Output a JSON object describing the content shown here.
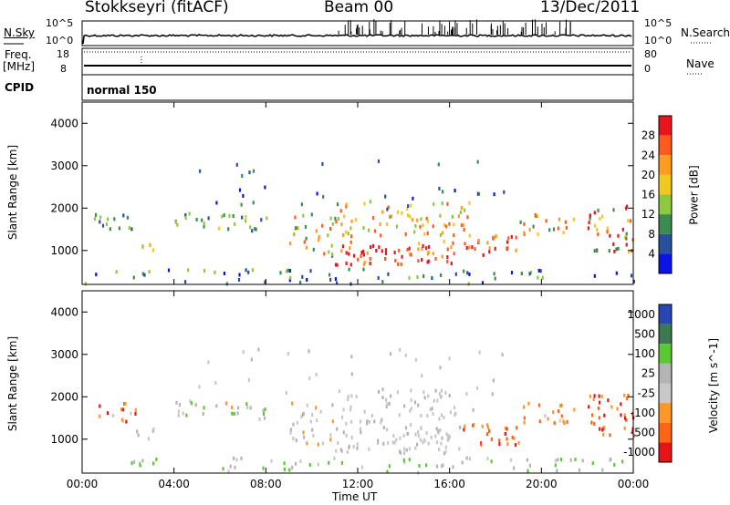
{
  "header": {
    "station": "Stokkseyri (fitACF)",
    "beam": "Beam 00",
    "date": "13/Dec/2011"
  },
  "strips": {
    "nsky_label": "N.Sky",
    "nsky_top": "10^5",
    "nsky_bottom": "10^0",
    "nsearch_label": "N.Search",
    "nsearch_top": "10^5",
    "nsearch_bottom": "10^0",
    "freq_label": "Freq.",
    "freq_unit": "[MHz]",
    "freq_top": "18",
    "freq_bottom": "8",
    "nave_label": "Nave",
    "nave_top": "80",
    "nave_bottom": "0",
    "cpid_label": "CPID",
    "cpid_value": "normal 150"
  },
  "chart_data": [
    {
      "type": "heatmap",
      "title": "",
      "xlabel": "Time UT",
      "ylabel": "Slant Range [km]",
      "x_ticks": [
        "00:00",
        "04:00",
        "08:00",
        "12:00",
        "16:00",
        "20:00",
        "00:00"
      ],
      "y_ticks": [
        "1000",
        "2000",
        "3000",
        "4000"
      ],
      "ylim": [
        200,
        4500
      ],
      "colorbar": {
        "label": "Power [dB]",
        "ticks": [
          "28",
          "24",
          "20",
          "16",
          "12",
          "8",
          "4"
        ],
        "colors": [
          "#e8141e",
          "#ff5a1e",
          "#ff9b1e",
          "#f0c81e",
          "#8ec83c",
          "#3c8c50",
          "#28509b",
          "#0a14e6"
        ]
      }
    },
    {
      "type": "heatmap",
      "title": "",
      "xlabel": "Time UT",
      "ylabel": "Slant Range [km]",
      "x_ticks": [
        "00:00",
        "04:00",
        "08:00",
        "12:00",
        "16:00",
        "20:00",
        "00:00"
      ],
      "y_ticks": [
        "1000",
        "2000",
        "3000",
        "4000"
      ],
      "ylim": [
        200,
        4500
      ],
      "colorbar": {
        "label": "Velocity [m s^-1]",
        "ticks": [
          "1000",
          "500",
          "100",
          "25",
          "-25",
          "-100",
          "-500",
          "-1000"
        ],
        "colors": [
          "#2846b4",
          "#3c7850",
          "#5ac832",
          "#b4b4b4",
          "#c8c8c8",
          "#ff9628",
          "#ff6414",
          "#e61414"
        ]
      }
    }
  ]
}
